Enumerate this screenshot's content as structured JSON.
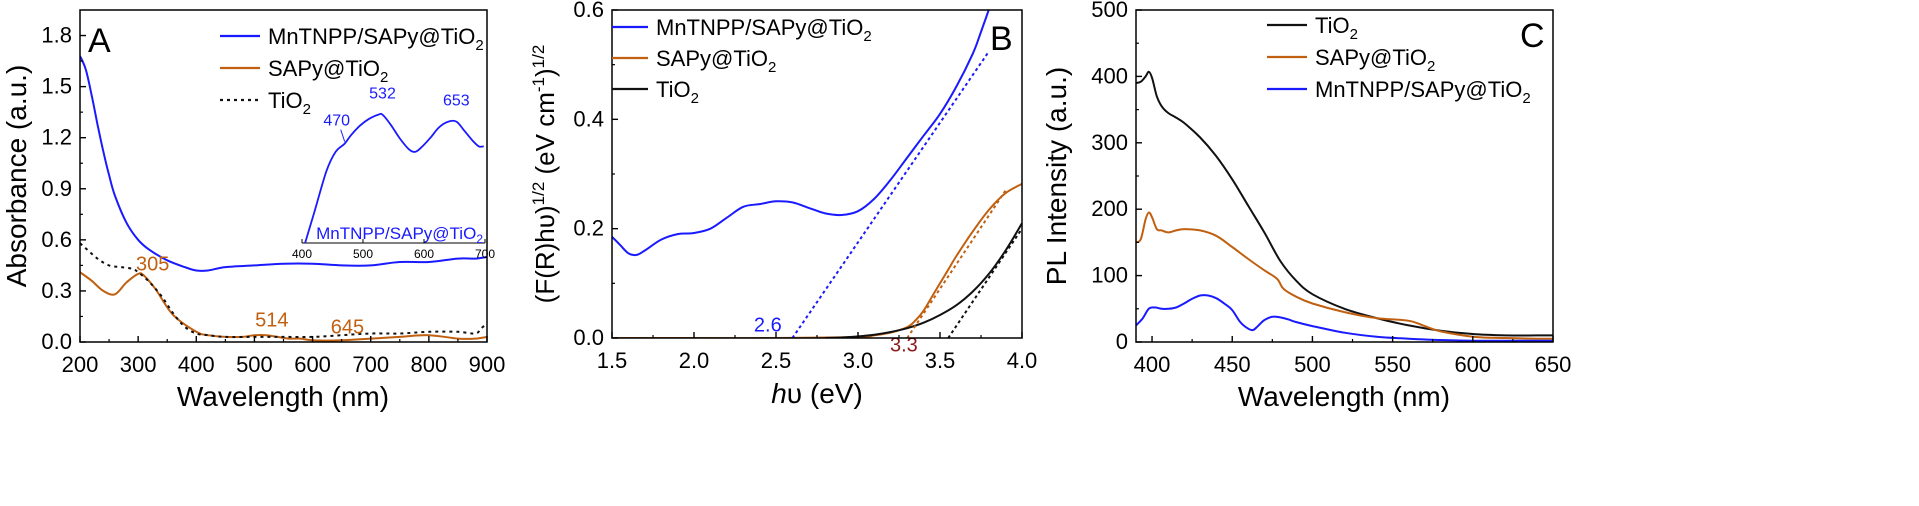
{
  "chart_data": [
    {
      "panel": "A",
      "type": "line",
      "xlabel": "Wavelength (nm)",
      "ylabel": "Absorbance (a.u.)",
      "xlim": [
        200,
        900
      ],
      "ylim": [
        0,
        1.95
      ],
      "xticks": [
        200,
        300,
        400,
        500,
        600,
        700,
        800,
        900
      ],
      "yticks": [
        0.0,
        0.3,
        0.6,
        0.9,
        1.2,
        1.5,
        1.8
      ],
      "xtick_labels": [
        "200",
        "300",
        "400",
        "500",
        "600",
        "700",
        "800",
        "900"
      ],
      "ytick_labels": [
        "0.0",
        "0.3",
        "0.6",
        "0.9",
        "1.2",
        "1.5",
        "1.8"
      ],
      "series": [
        {
          "name": "MnTNPP/SAPy@TiO2",
          "label_main": "MnTNPP/SAPy@TiO",
          "label_sub": "2",
          "color": "#1a1aff",
          "dash": "none",
          "x": [
            200,
            210,
            220,
            230,
            240,
            250,
            260,
            280,
            300,
            320,
            350,
            380,
            400,
            420,
            450,
            500,
            550,
            600,
            650,
            700,
            750,
            800,
            850,
            880,
            900
          ],
          "y": [
            1.68,
            1.6,
            1.45,
            1.28,
            1.12,
            0.98,
            0.86,
            0.7,
            0.6,
            0.54,
            0.48,
            0.44,
            0.42,
            0.42,
            0.44,
            0.45,
            0.46,
            0.46,
            0.45,
            0.45,
            0.47,
            0.47,
            0.49,
            0.49,
            0.5
          ]
        },
        {
          "name": "SAPy@TiO2",
          "label_main": "SAPy@TiO",
          "label_sub": "2",
          "color": "#c06010",
          "dash": "none",
          "x": [
            200,
            220,
            240,
            260,
            280,
            300,
            310,
            330,
            360,
            400,
            420,
            450,
            480,
            500,
            520,
            540,
            560,
            580,
            600,
            650,
            700,
            750,
            800,
            850,
            880,
            900
          ],
          "y": [
            0.41,
            0.36,
            0.3,
            0.28,
            0.35,
            0.4,
            0.39,
            0.31,
            0.16,
            0.06,
            0.04,
            0.03,
            0.03,
            0.04,
            0.04,
            0.03,
            0.02,
            0.02,
            0.01,
            0.01,
            0.02,
            0.03,
            0.04,
            0.02,
            0.02,
            0.03
          ]
        },
        {
          "name": "TiO2",
          "label_main": "TiO",
          "label_sub": "2",
          "color": "#111111",
          "dash": "3,4",
          "x": [
            200,
            210,
            230,
            250,
            270,
            290,
            300,
            320,
            340,
            360,
            380,
            400,
            420,
            450,
            500,
            550,
            600,
            650,
            700,
            750,
            800,
            850,
            880,
            890,
            900
          ],
          "y": [
            0.58,
            0.55,
            0.49,
            0.45,
            0.44,
            0.43,
            0.41,
            0.35,
            0.27,
            0.17,
            0.09,
            0.05,
            0.04,
            0.03,
            0.03,
            0.03,
            0.03,
            0.04,
            0.05,
            0.05,
            0.06,
            0.06,
            0.05,
            0.08,
            0.11
          ]
        }
      ],
      "annotations": [
        {
          "text": "305",
          "x": 325,
          "y": 0.42,
          "color": "#c06010"
        },
        {
          "text": "514",
          "x": 530,
          "y": 0.09,
          "color": "#c06010"
        },
        {
          "text": "645",
          "x": 660,
          "y": 0.05,
          "color": "#c06010"
        }
      ],
      "panel_label": "A",
      "legend_position": "top-right",
      "inset": {
        "xlim": [
          400,
          700
        ],
        "xticks": [
          400,
          500,
          600,
          700
        ],
        "xtick_labels": [
          "400",
          "500",
          "600",
          "700"
        ],
        "ylim": [
          0,
          1
        ],
        "label": "MnTNPP/SAPy@TiO",
        "label_sub": "2",
        "color": "#1a1aff",
        "x": [
          405,
          420,
          440,
          455,
          470,
          480,
          495,
          510,
          525,
          532,
          545,
          560,
          575,
          585,
          595,
          610,
          625,
          640,
          653,
          665,
          680,
          690,
          698
        ],
        "y": [
          0.0,
          0.22,
          0.52,
          0.66,
          0.72,
          0.78,
          0.85,
          0.9,
          0.93,
          0.93,
          0.86,
          0.76,
          0.68,
          0.66,
          0.69,
          0.76,
          0.84,
          0.88,
          0.88,
          0.82,
          0.74,
          0.7,
          0.7
        ],
        "peaks": [
          {
            "text": "470",
            "x": 470,
            "y": 0.72
          },
          {
            "text": "532",
            "x": 532,
            "y": 0.93
          },
          {
            "text": "653",
            "x": 653,
            "y": 0.88
          }
        ]
      }
    },
    {
      "panel": "B",
      "type": "line",
      "xlabel_italic": "h",
      "xlabel_symbol": "υ",
      "xlabel_rest": " (eV)",
      "ylabel": "(F(R)hυ)1/2 (eV cm-1)1/2",
      "ylabel_parts": [
        "(F(R)hυ)",
        "1/2",
        " (eV cm",
        "-1",
        ")",
        "1/2"
      ],
      "xlim": [
        1.5,
        4.0
      ],
      "ylim": [
        0,
        0.6
      ],
      "xticks": [
        1.5,
        2.0,
        2.5,
        3.0,
        3.5,
        4.0
      ],
      "yticks": [
        0.0,
        0.2,
        0.4,
        0.6
      ],
      "xtick_labels": [
        "1.5",
        "2.0",
        "2.5",
        "3.0",
        "3.5",
        "4.0"
      ],
      "ytick_labels": [
        "0.0",
        "0.2",
        "0.4",
        "0.6"
      ],
      "series": [
        {
          "name": "MnTNPP/SAPy@TiO2",
          "label_main": "MnTNPP/SAPy@TiO",
          "label_sub": "2",
          "color": "#1a1aff",
          "dash": "none",
          "x": [
            1.5,
            1.55,
            1.6,
            1.65,
            1.7,
            1.8,
            1.9,
            2.0,
            2.1,
            2.2,
            2.3,
            2.4,
            2.5,
            2.6,
            2.7,
            2.8,
            2.9,
            3.0,
            3.1,
            3.2,
            3.3,
            3.4,
            3.5,
            3.6,
            3.7,
            3.75,
            3.82
          ],
          "y": [
            0.185,
            0.17,
            0.155,
            0.152,
            0.16,
            0.18,
            0.19,
            0.192,
            0.2,
            0.22,
            0.24,
            0.245,
            0.25,
            0.248,
            0.238,
            0.228,
            0.225,
            0.232,
            0.255,
            0.29,
            0.33,
            0.37,
            0.41,
            0.46,
            0.52,
            0.56,
            0.62
          ]
        },
        {
          "name": "SAPy@TiO2",
          "label_main": "SAPy@TiO",
          "label_sub": "2",
          "color": "#c06010",
          "dash": "none",
          "x": [
            1.5,
            1.6,
            2.0,
            2.5,
            3.0,
            3.1,
            3.2,
            3.3,
            3.35,
            3.4,
            3.45,
            3.5,
            3.55,
            3.6,
            3.7,
            3.8,
            3.9,
            4.0
          ],
          "y": [
            0.0,
            0.0,
            0.0,
            0.0,
            0.002,
            0.005,
            0.01,
            0.02,
            0.032,
            0.05,
            0.075,
            0.1,
            0.125,
            0.15,
            0.195,
            0.235,
            0.265,
            0.282
          ]
        },
        {
          "name": "TiO2",
          "label_main": "TiO",
          "label_sub": "2",
          "color": "#111111",
          "dash": "none",
          "x": [
            2.8,
            2.9,
            3.0,
            3.1,
            3.2,
            3.3,
            3.4,
            3.5,
            3.6,
            3.7,
            3.8,
            3.9,
            4.0
          ],
          "y": [
            0.0,
            0.001,
            0.003,
            0.006,
            0.011,
            0.018,
            0.028,
            0.042,
            0.06,
            0.085,
            0.118,
            0.16,
            0.21
          ]
        }
      ],
      "tangents": [
        {
          "series": "MnTNPP/SAPy@TiO2",
          "color": "#1a1aff",
          "x": [
            2.6,
            3.8
          ],
          "y": [
            0.0,
            0.525
          ]
        },
        {
          "series": "SAPy@TiO2",
          "color": "#c06010",
          "x": [
            3.3,
            3.9
          ],
          "y": [
            0.0,
            0.27
          ]
        },
        {
          "series": "TiO2",
          "color": "#111111",
          "x": [
            3.55,
            4.0
          ],
          "y": [
            0.0,
            0.2
          ]
        }
      ],
      "annotations": [
        {
          "text": "2.6",
          "x": 2.45,
          "y": 0.012,
          "color": "#1a1aff"
        },
        {
          "text": "3.3",
          "x": 3.28,
          "y": -0.025,
          "color": "#8b1a1a"
        }
      ],
      "panel_label": "B",
      "legend_position": "top-left"
    },
    {
      "panel": "C",
      "type": "line",
      "xlabel": "Wavelength (nm)",
      "ylabel": "PL Intensity (a.u.)",
      "xlim": [
        390,
        650
      ],
      "ylim": [
        0,
        500
      ],
      "xticks": [
        400,
        450,
        500,
        550,
        600,
        650
      ],
      "yticks": [
        0,
        100,
        200,
        300,
        400,
        500
      ],
      "xtick_labels": [
        "400",
        "450",
        "500",
        "550",
        "600",
        "650"
      ],
      "ytick_labels": [
        "0",
        "100",
        "200",
        "300",
        "400",
        "500"
      ],
      "series": [
        {
          "name": "TiO2",
          "label_main": "TiO",
          "label_sub": "2",
          "color": "#111111",
          "dash": "none",
          "x": [
            390,
            393,
            396,
            398,
            400,
            403,
            406,
            410,
            415,
            420,
            430,
            440,
            450,
            460,
            470,
            480,
            490,
            500,
            520,
            540,
            560,
            580,
            600,
            620,
            640,
            650
          ],
          "y": [
            390,
            392,
            400,
            407,
            398,
            370,
            355,
            345,
            338,
            330,
            308,
            280,
            245,
            205,
            165,
            122,
            92,
            72,
            50,
            36,
            25,
            17,
            12,
            10,
            10,
            10
          ]
        },
        {
          "name": "SAPy@TiO2",
          "label_main": "SAPy@TiO",
          "label_sub": "2",
          "color": "#c06010",
          "dash": "none",
          "x": [
            390,
            393,
            396,
            398,
            400,
            403,
            406,
            410,
            415,
            420,
            430,
            440,
            450,
            460,
            470,
            478,
            482,
            490,
            500,
            520,
            540,
            560,
            570,
            580,
            600,
            620,
            640,
            650
          ],
          "y": [
            150,
            155,
            185,
            195,
            188,
            170,
            168,
            165,
            168,
            170,
            168,
            160,
            143,
            125,
            108,
            95,
            80,
            68,
            58,
            45,
            36,
            32,
            24,
            16,
            8,
            6,
            5,
            5
          ]
        },
        {
          "name": "MnTNPP/SAPy@TiO2",
          "label_main": "MnTNPP/SAPy@TiO",
          "label_sub": "2",
          "color": "#1a1aff",
          "dash": "none",
          "x": [
            390,
            394,
            398,
            402,
            406,
            410,
            415,
            420,
            425,
            430,
            435,
            440,
            445,
            450,
            455,
            460,
            463,
            466,
            470,
            475,
            480,
            485,
            490,
            500,
            520,
            540,
            560,
            580,
            600,
            620,
            640,
            650
          ],
          "y": [
            25,
            35,
            50,
            52,
            50,
            50,
            52,
            58,
            65,
            70,
            70,
            66,
            58,
            48,
            30,
            20,
            18,
            24,
            33,
            38,
            37,
            34,
            30,
            24,
            14,
            8,
            5,
            3,
            2,
            2,
            2,
            2
          ]
        }
      ],
      "panel_label": "C",
      "legend_position": "top-right"
    }
  ]
}
